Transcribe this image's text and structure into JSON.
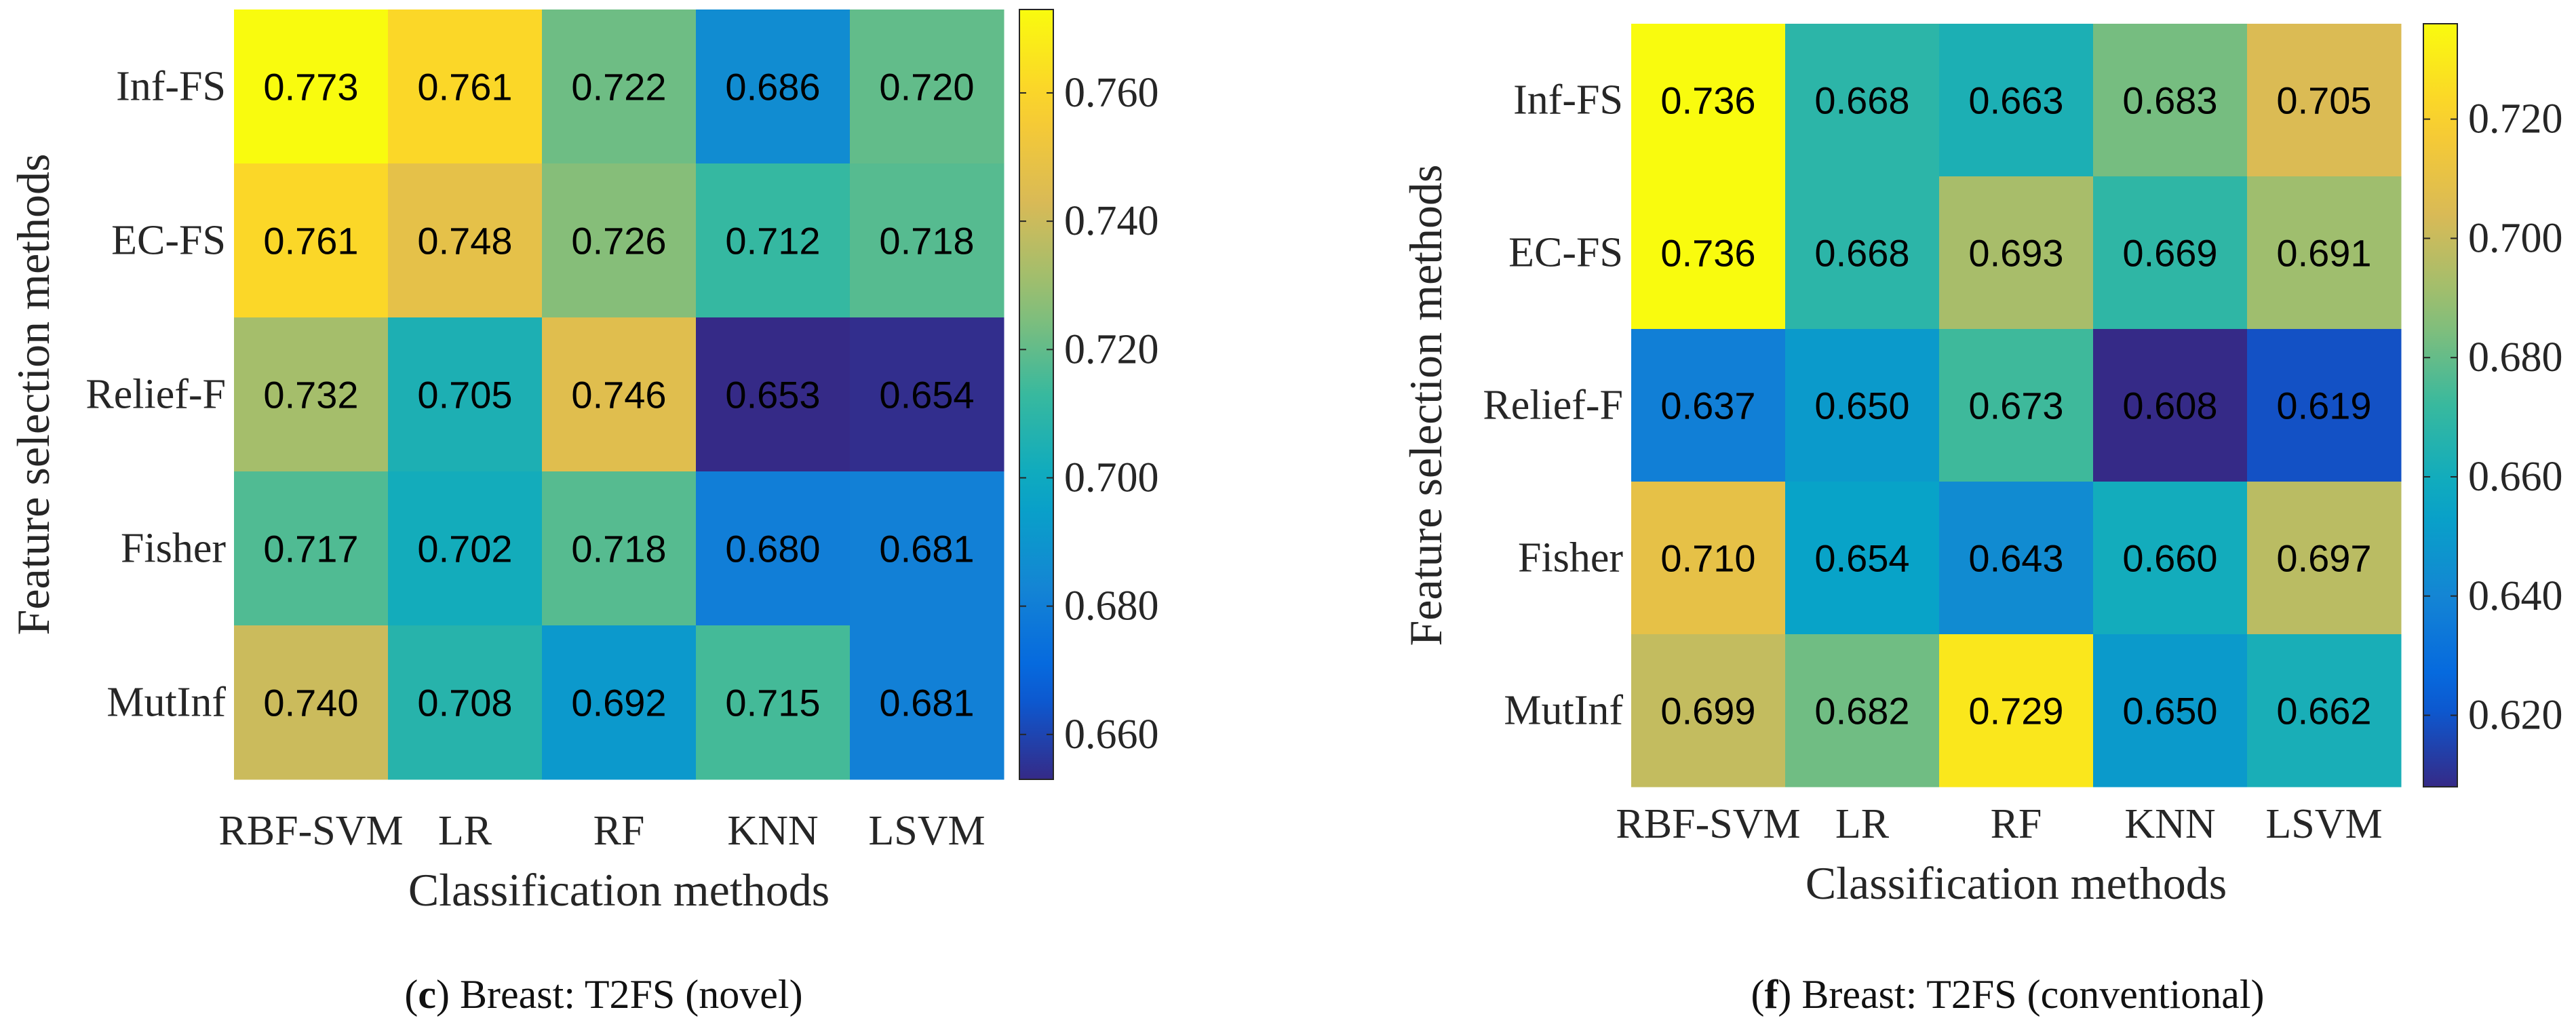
{
  "chart_data": [
    {
      "type": "heatmap",
      "caption_letter": "c",
      "caption_text": " Breast: T2FS (novel)",
      "xlabel": "Classification methods",
      "ylabel": "Feature selection methods",
      "x_categories": [
        "RBF-SVM",
        "LR",
        "RF",
        "KNN",
        "LSVM"
      ],
      "y_categories": [
        "Inf-FS",
        "EC-FS",
        "Relief-F",
        "Fisher",
        "MutInf"
      ],
      "values": [
        [
          0.773,
          0.761,
          0.722,
          0.686,
          0.72
        ],
        [
          0.761,
          0.748,
          0.726,
          0.712,
          0.718
        ],
        [
          0.732,
          0.705,
          0.746,
          0.653,
          0.654
        ],
        [
          0.717,
          0.702,
          0.718,
          0.68,
          0.681
        ],
        [
          0.74,
          0.708,
          0.692,
          0.715,
          0.681
        ]
      ],
      "value_labels": [
        [
          "0.773",
          "0.761",
          "0.722",
          "0.686",
          "0.720"
        ],
        [
          "0.761",
          "0.748",
          "0.726",
          "0.712",
          "0.718"
        ],
        [
          "0.732",
          "0.705",
          "0.746",
          "0.653",
          "0.654"
        ],
        [
          "0.717",
          "0.702",
          "0.718",
          "0.680",
          "0.681"
        ],
        [
          "0.740",
          "0.708",
          "0.692",
          "0.715",
          "0.681"
        ]
      ],
      "colorbar": {
        "range": [
          0.653,
          0.773
        ],
        "ticks": [
          0.66,
          0.68,
          0.7,
          0.72,
          0.74,
          0.76
        ],
        "tick_labels": [
          "0.660",
          "0.680",
          "0.700",
          "0.720",
          "0.740",
          "0.760"
        ],
        "colormap": "parula"
      }
    },
    {
      "type": "heatmap",
      "caption_letter": "f",
      "caption_text": " Breast: T2FS (conventional)",
      "xlabel": "Classification methods",
      "ylabel": "Feature selection methods",
      "x_categories": [
        "RBF-SVM",
        "LR",
        "RF",
        "KNN",
        "LSVM"
      ],
      "y_categories": [
        "Inf-FS",
        "EC-FS",
        "Relief-F",
        "Fisher",
        "MutInf"
      ],
      "values": [
        [
          0.736,
          0.668,
          0.663,
          0.683,
          0.705
        ],
        [
          0.736,
          0.668,
          0.693,
          0.669,
          0.691
        ],
        [
          0.637,
          0.65,
          0.673,
          0.608,
          0.619
        ],
        [
          0.71,
          0.654,
          0.643,
          0.66,
          0.697
        ],
        [
          0.699,
          0.682,
          0.729,
          0.65,
          0.662
        ]
      ],
      "value_labels": [
        [
          "0.736",
          "0.668",
          "0.663",
          "0.683",
          "0.705"
        ],
        [
          "0.736",
          "0.668",
          "0.693",
          "0.669",
          "0.691"
        ],
        [
          "0.637",
          "0.650",
          "0.673",
          "0.608",
          "0.619"
        ],
        [
          "0.710",
          "0.654",
          "0.643",
          "0.660",
          "0.697"
        ],
        [
          "0.699",
          "0.682",
          "0.729",
          "0.650",
          "0.662"
        ]
      ],
      "colorbar": {
        "range": [
          0.608,
          0.736
        ],
        "ticks": [
          0.62,
          0.64,
          0.66,
          0.68,
          0.7,
          0.72
        ],
        "tick_labels": [
          "0.620",
          "0.640",
          "0.660",
          "0.680",
          "0.700",
          "0.720"
        ],
        "colormap": "parula"
      }
    }
  ]
}
